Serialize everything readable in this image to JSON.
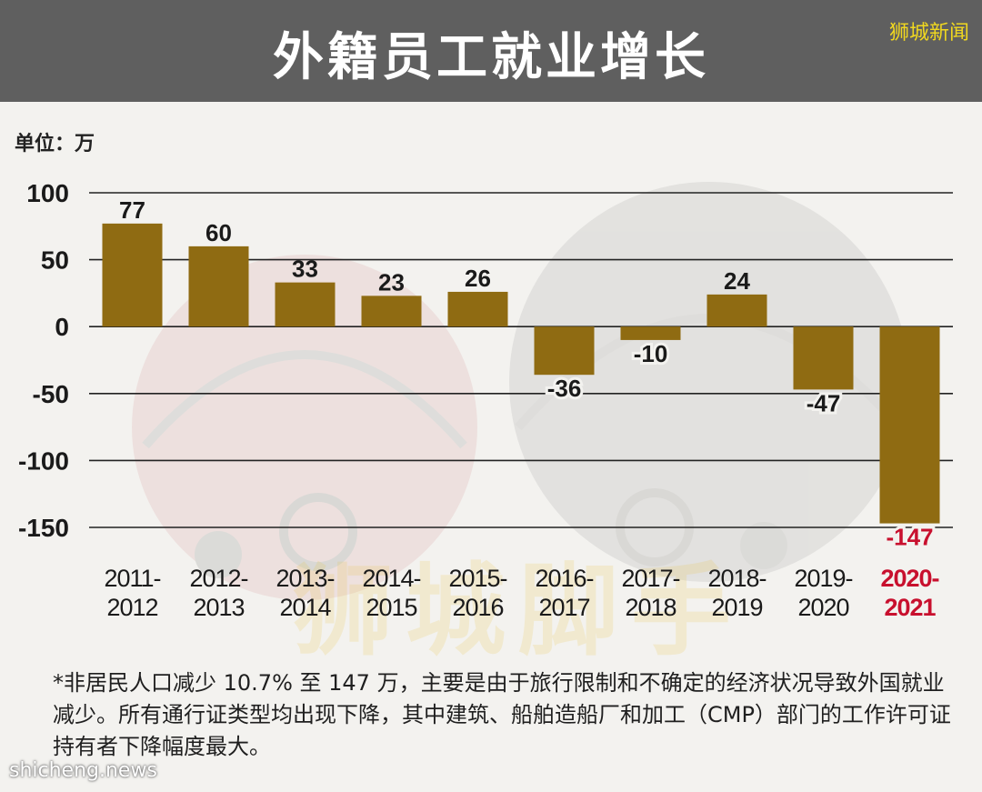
{
  "header": {
    "title": "外籍员工就业增长",
    "brand": "狮城新闻"
  },
  "unit_label": "单位：万",
  "watermark_text": "狮城脚手",
  "footnote": "*非居民人口减少 10.7% 至 147 万，主要是由于旅行限制和不确定的经济状况导致外国就业减少。所有通行证类型均出现下降，其中建筑、船舶造船厂和加工（CMP）部门的工作许可证持有者下降幅度最大。",
  "source": "shicheng.news",
  "colors": {
    "bar": "#8f6b12",
    "highlight": "#c8102e",
    "gridline": "#222222",
    "header_bg": "#5f5f5f"
  },
  "chart_data": {
    "type": "bar",
    "title": "外籍员工就业增长",
    "ylabel": "单位：万",
    "xlabel": "",
    "ylim": [
      -150,
      100
    ],
    "yticks": [
      100,
      50,
      0,
      -50,
      -100,
      -150
    ],
    "grid": true,
    "categories": [
      [
        "2011-",
        "2012"
      ],
      [
        "2012-",
        "2013"
      ],
      [
        "2013-",
        "2014"
      ],
      [
        "2014-",
        "2015"
      ],
      [
        "2015-",
        "2016"
      ],
      [
        "2016-",
        "2017"
      ],
      [
        "2017-",
        "2018"
      ],
      [
        "2018-",
        "2019"
      ],
      [
        "2019-",
        "2020"
      ],
      [
        "2020-",
        "2021"
      ]
    ],
    "values": [
      77,
      60,
      33,
      23,
      26,
      -36,
      -10,
      24,
      -47,
      -147
    ],
    "highlight_index": 9
  }
}
